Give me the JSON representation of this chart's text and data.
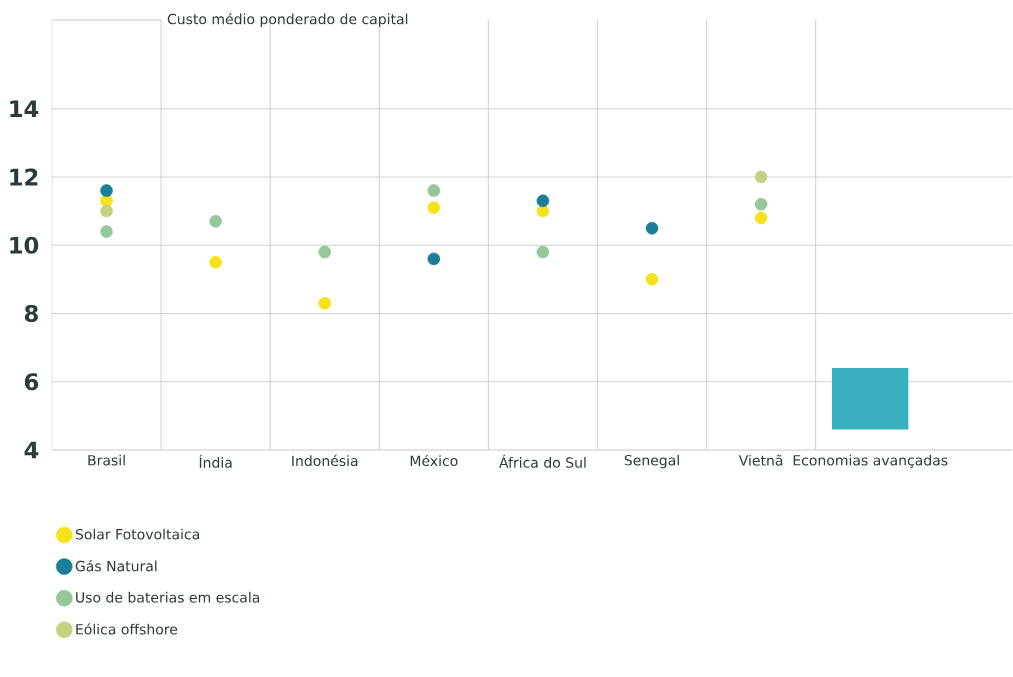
{
  "chart_data": {
    "type": "scatter",
    "ylabel": "Custo médio ponderado de capital",
    "categories": [
      "Brasil",
      "Índia",
      "Indonésia",
      "México",
      "África do Sul",
      "Senegal",
      "Vietnã",
      "Economias avançadas"
    ],
    "series": [
      {
        "name": "Solar Fotovoltaica",
        "color": "#f5e21a",
        "values": [
          11.3,
          9.5,
          8.3,
          11.1,
          11.0,
          9.0,
          10.8,
          null
        ]
      },
      {
        "name": "Gás Natural",
        "color": "#1a7f96",
        "values": [
          11.6,
          null,
          null,
          9.6,
          11.3,
          10.5,
          null,
          null
        ]
      },
      {
        "name": "Uso de baterias em escala",
        "color": "#96c79a",
        "values": [
          10.4,
          10.7,
          9.8,
          11.6,
          9.8,
          null,
          11.2,
          null
        ]
      },
      {
        "name": "Eólica offshore",
        "color": "#c3d27f",
        "values": [
          11.0,
          null,
          null,
          null,
          null,
          null,
          12.0,
          null
        ]
      },
      {
        "type": "bar",
        "color": "#3aafbd",
        "values": [
          null,
          null,
          null,
          null,
          null,
          null,
          null,
          1.8
        ],
        "base": [
          null,
          null,
          null,
          null,
          null,
          null,
          null,
          4.6
        ]
      }
    ],
    "ylim": [
      4,
      16.6
    ],
    "yticks": [
      4,
      6,
      8,
      10,
      12,
      14
    ],
    "grid": true,
    "legend": "bottom"
  }
}
